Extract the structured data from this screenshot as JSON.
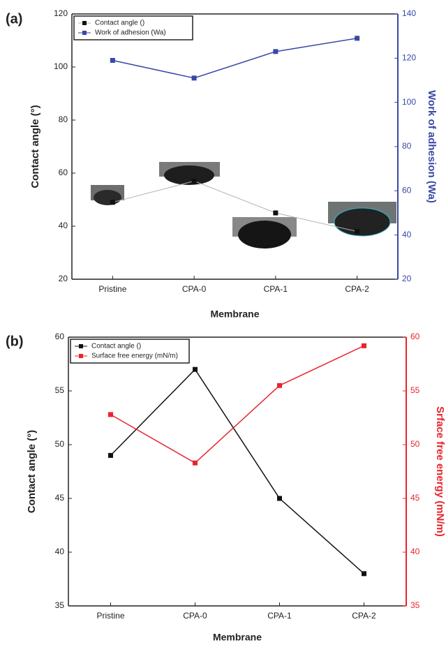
{
  "chart_data": [
    {
      "type": "line",
      "panel_label": "(a)",
      "categories": [
        "Pristine",
        "CPA-0",
        "CPA-1",
        "CPA-2"
      ],
      "x_label": "Membrane",
      "y_label": "Contact angle (°)",
      "y2_label": "Work of adhesion (Wa)",
      "ylim": [
        20,
        120
      ],
      "yticks": [
        20,
        40,
        60,
        80,
        100,
        120
      ],
      "y2lim": [
        20,
        140
      ],
      "y2ticks": [
        20,
        40,
        60,
        80,
        100,
        120,
        140
      ],
      "legend": "upper left",
      "series": [
        {
          "name": "Contact angle ()",
          "color": "#111111",
          "line_color": "#b5b5b5",
          "values": [
            49,
            57,
            45,
            38
          ]
        },
        {
          "name": "Work of adhesion (Wa)",
          "color": "#3848a8",
          "axis": "y2",
          "values": [
            119,
            111,
            123,
            129
          ]
        }
      ]
    },
    {
      "type": "line",
      "panel_label": "(b)",
      "categories": [
        "Pristine",
        "CPA-0",
        "CPA-1",
        "CPA-2"
      ],
      "x_label": "Membrane",
      "y_label": "Contact angle (°)",
      "y2_label": "Srface free energy (mN/m)",
      "ylim": [
        35,
        60
      ],
      "yticks": [
        35,
        40,
        45,
        50,
        55,
        60
      ],
      "y2lim": [
        35,
        60
      ],
      "y2ticks": [
        35,
        40,
        45,
        50,
        55,
        60
      ],
      "legend": "upper left",
      "series": [
        {
          "name": "Contact angle ()",
          "color": "#111111",
          "values": [
            49,
            57,
            45,
            38
          ]
        },
        {
          "name": "Surface free energy (mN/m)",
          "color": "#e8242c",
          "axis": "y2",
          "values": [
            52.8,
            48.3,
            55.5,
            59.2
          ]
        }
      ]
    }
  ]
}
